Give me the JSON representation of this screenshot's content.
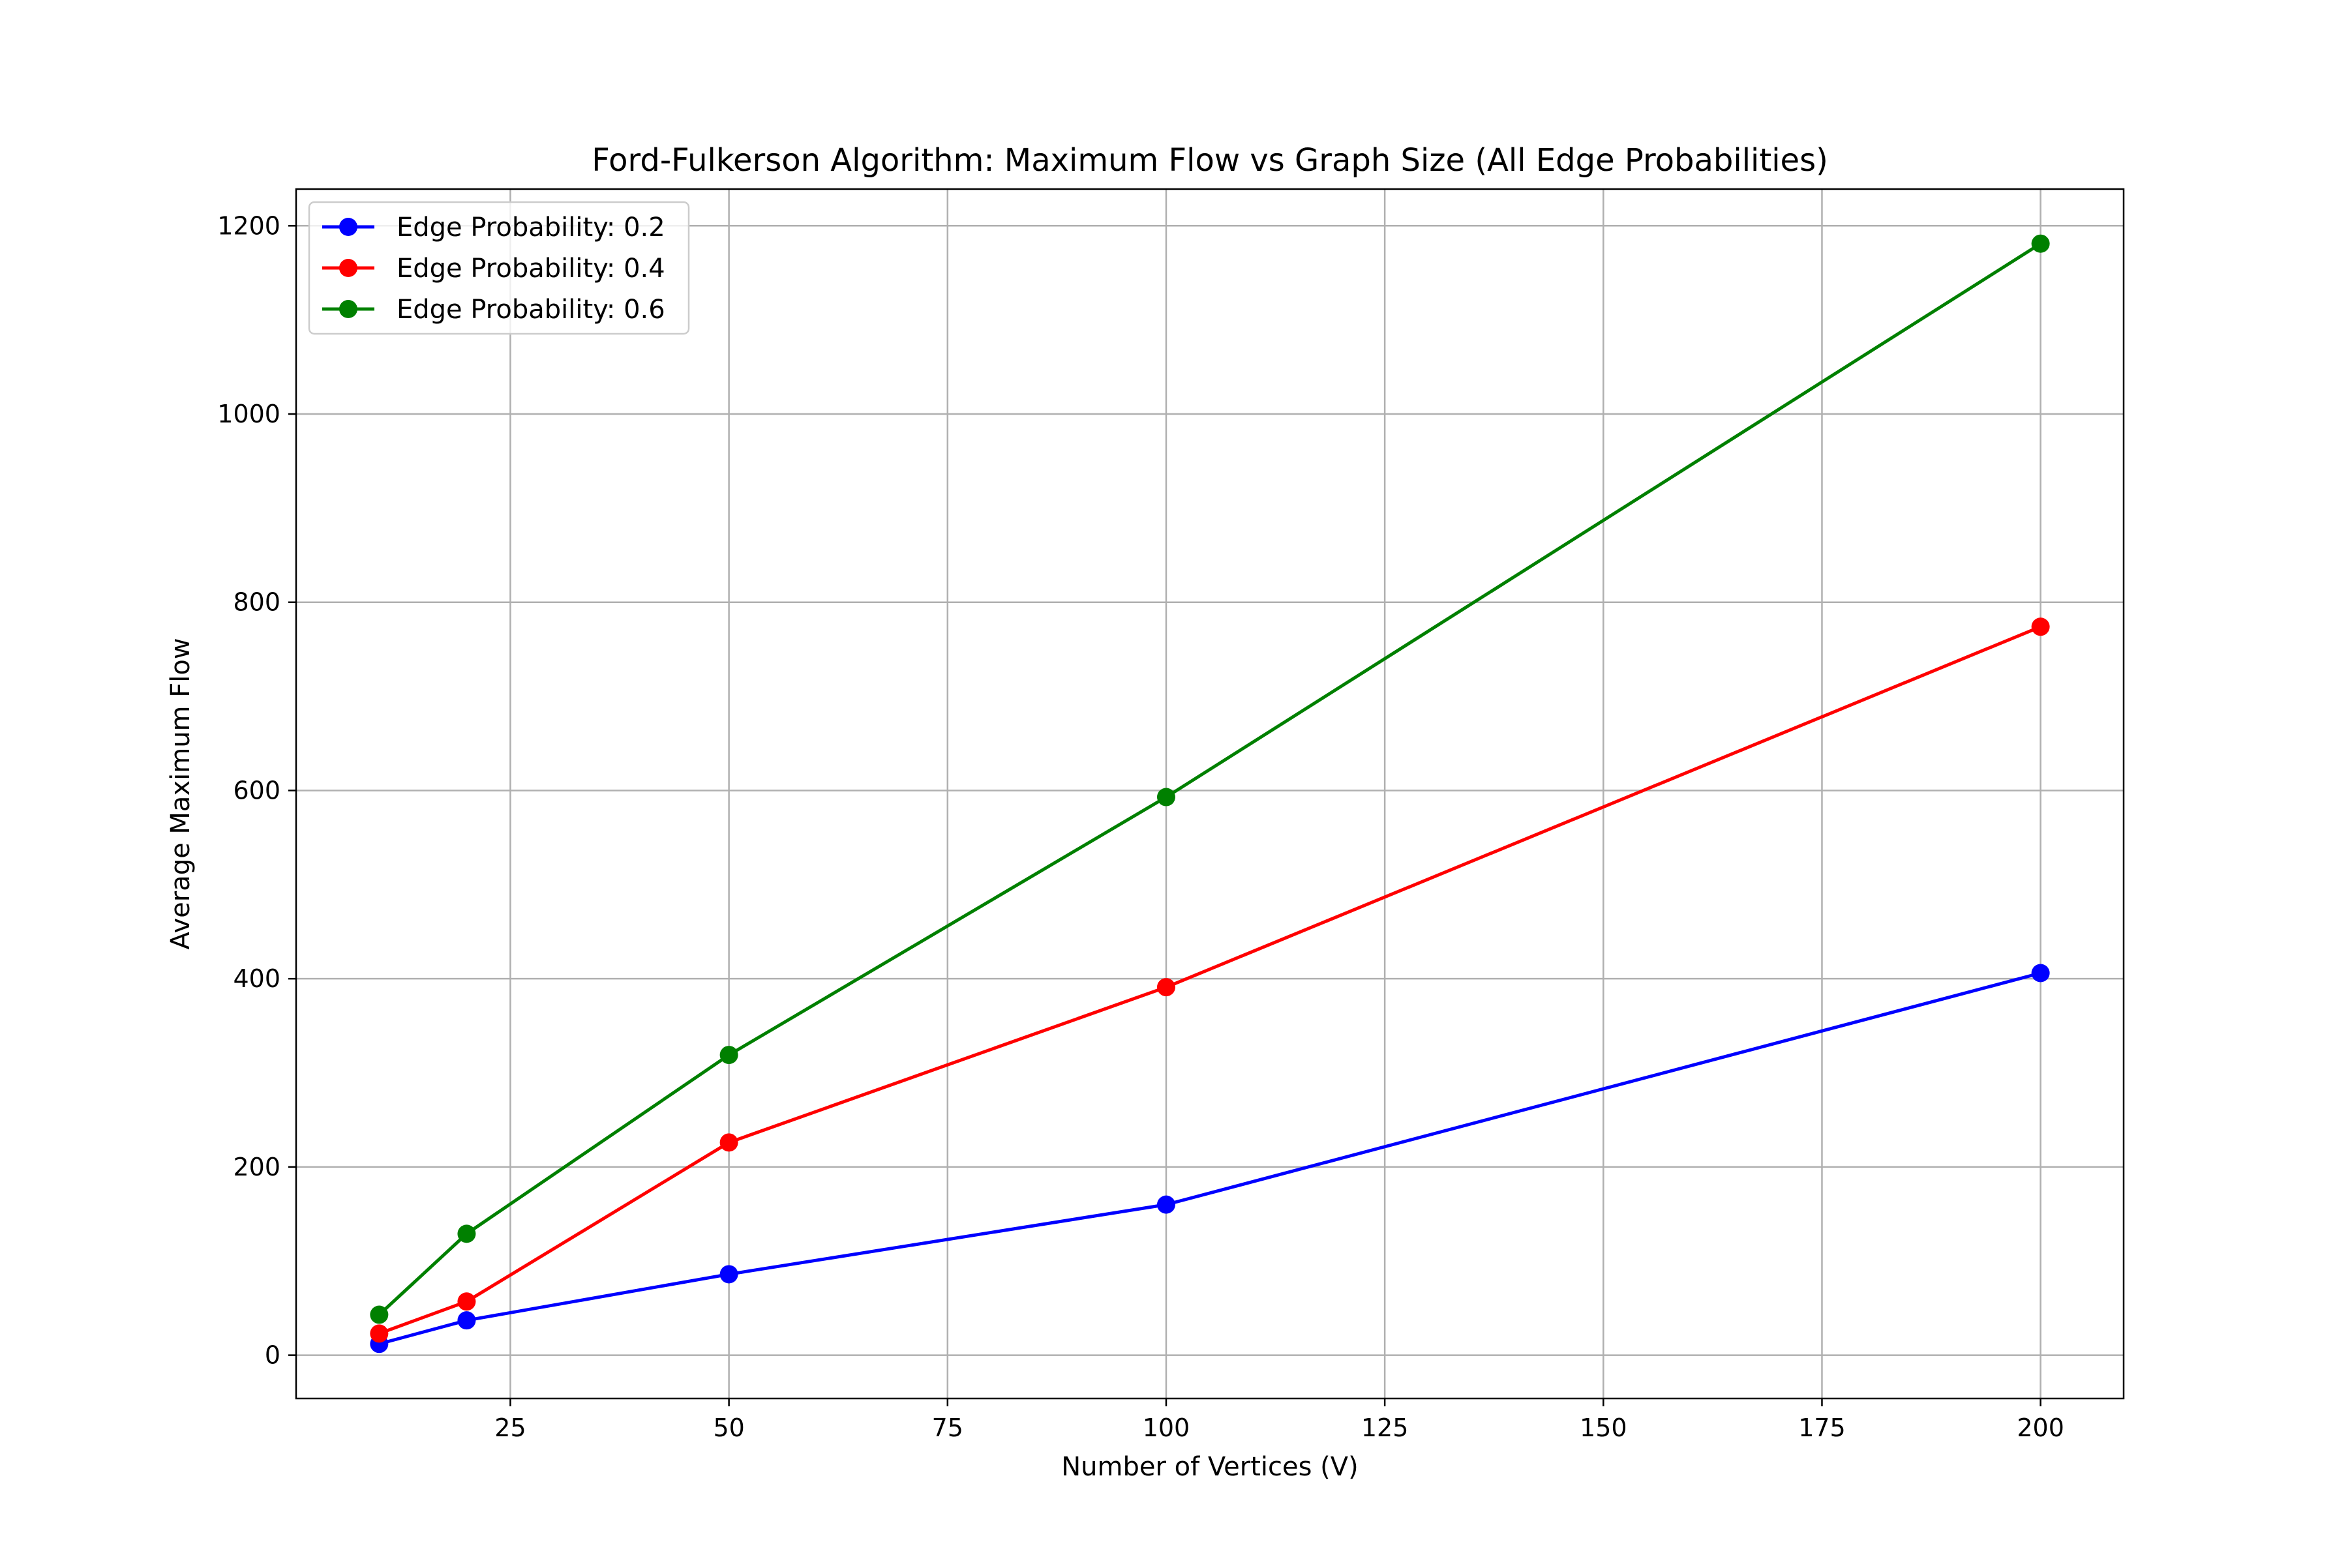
{
  "chart_data": {
    "type": "line",
    "title": "Ford-Fulkerson Algorithm: Maximum Flow vs Graph Size (All Edge Probabilities)",
    "xlabel": "Number of Vertices (V)",
    "ylabel": "Average Maximum Flow",
    "x": [
      10,
      20,
      50,
      100,
      200
    ],
    "series": [
      {
        "name": "Edge Probability: 0.2",
        "color": "#0000ff",
        "values": [
          12,
          37,
          86,
          160,
          406
        ]
      },
      {
        "name": "Edge Probability: 0.4",
        "color": "#ff0000",
        "values": [
          23,
          57,
          226,
          391,
          774
        ]
      },
      {
        "name": "Edge Probability: 0.6",
        "color": "#008000",
        "values": [
          43,
          129,
          319,
          593,
          1181
        ]
      }
    ],
    "xlim": [
      0.5,
      209.5
    ],
    "ylim": [
      -46,
      1239
    ],
    "xticks": [
      25,
      50,
      75,
      100,
      125,
      150,
      175,
      200
    ],
    "xtick_labels": [
      "25",
      "50",
      "75",
      "100",
      "125",
      "150",
      "175",
      "200"
    ],
    "yticks": [
      0,
      200,
      400,
      600,
      800,
      1000,
      1200
    ],
    "ytick_labels": [
      "0",
      "200",
      "400",
      "600",
      "800",
      "1000",
      "1200"
    ],
    "grid": true,
    "legend_position": "top-left",
    "marker": "circle"
  }
}
